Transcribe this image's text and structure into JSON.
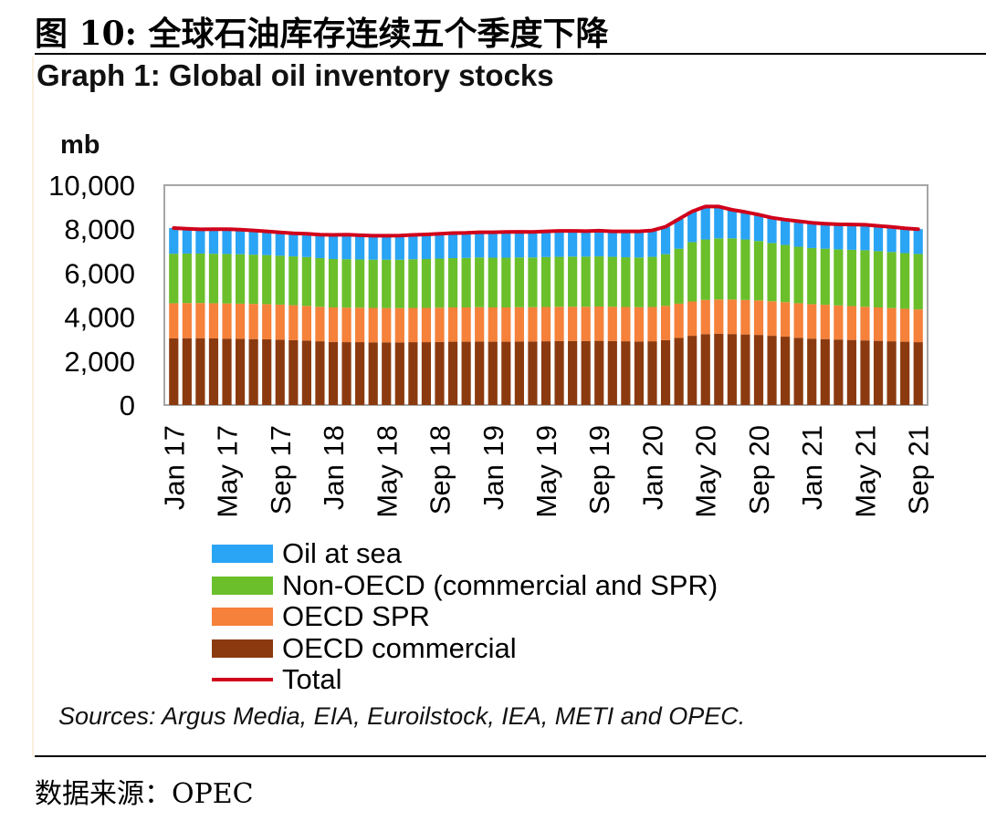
{
  "figure_caption": "图 10: 全球石油库存连续五个季度下降",
  "footer_source": "数据来源：OPEC",
  "chart_data": {
    "type": "bar",
    "title": "Graph 1: Global oil inventory stocks",
    "ylabel": "mb",
    "xlabel": "",
    "ylim": [
      0,
      10000
    ],
    "y_ticks": [
      "0",
      "2,000",
      "4,000",
      "6,000",
      "8,000",
      "10,000"
    ],
    "stacked": true,
    "legend_position": "bottom",
    "grid": false,
    "tick_labels": [
      "Jan 17",
      "May 17",
      "Sep 17",
      "Jan 18",
      "May 18",
      "Sep 18",
      "Jan 19",
      "May 19",
      "Sep 19",
      "Jan 20",
      "May 20",
      "Sep 20",
      "Jan 21",
      "May 21",
      "Sep 21"
    ],
    "categories": [
      "Jan 17",
      "Feb 17",
      "Mar 17",
      "Apr 17",
      "May 17",
      "Jun 17",
      "Jul 17",
      "Aug 17",
      "Sep 17",
      "Oct 17",
      "Nov 17",
      "Dec 17",
      "Jan 18",
      "Feb 18",
      "Mar 18",
      "Apr 18",
      "May 18",
      "Jun 18",
      "Jul 18",
      "Aug 18",
      "Sep 18",
      "Oct 18",
      "Nov 18",
      "Dec 18",
      "Jan 19",
      "Feb 19",
      "Mar 19",
      "Apr 19",
      "May 19",
      "Jun 19",
      "Jul 19",
      "Aug 19",
      "Sep 19",
      "Oct 19",
      "Nov 19",
      "Dec 19",
      "Jan 20",
      "Feb 20",
      "Mar 20",
      "Apr 20",
      "May 20",
      "Jun 20",
      "Jul 20",
      "Aug 20",
      "Sep 20",
      "Oct 20",
      "Nov 20",
      "Dec 20",
      "Jan 21",
      "Feb 21",
      "Mar 21",
      "Apr 21",
      "May 21",
      "Jun 21",
      "Jul 21",
      "Aug 21",
      "Sep 21"
    ],
    "series": [
      {
        "name": "OECD commercial",
        "color": "#8b3a0f",
        "values": [
          3030,
          3040,
          3040,
          3030,
          3020,
          3010,
          3000,
          2990,
          2970,
          2950,
          2930,
          2900,
          2870,
          2860,
          2860,
          2850,
          2850,
          2850,
          2860,
          2860,
          2870,
          2880,
          2880,
          2890,
          2880,
          2880,
          2890,
          2890,
          2900,
          2910,
          2910,
          2910,
          2920,
          2910,
          2900,
          2890,
          2900,
          2950,
          3050,
          3150,
          3220,
          3240,
          3230,
          3210,
          3190,
          3150,
          3110,
          3060,
          3020,
          3000,
          2980,
          2960,
          2940,
          2920,
          2900,
          2880,
          2860
        ]
      },
      {
        "name": "OECD SPR",
        "color": "#f5813a",
        "values": [
          1600,
          1600,
          1600,
          1600,
          1600,
          1600,
          1600,
          1600,
          1600,
          1590,
          1580,
          1570,
          1570,
          1570,
          1570,
          1570,
          1560,
          1560,
          1560,
          1560,
          1560,
          1560,
          1560,
          1560,
          1560,
          1560,
          1560,
          1560,
          1560,
          1560,
          1560,
          1560,
          1560,
          1560,
          1560,
          1560,
          1560,
          1560,
          1560,
          1560,
          1560,
          1560,
          1570,
          1570,
          1570,
          1570,
          1570,
          1570,
          1570,
          1560,
          1550,
          1540,
          1530,
          1520,
          1510,
          1500,
          1490
        ]
      },
      {
        "name": "Non-OECD (commercial and SPR)",
        "color": "#6abf2a",
        "values": [
          2250,
          2250,
          2250,
          2250,
          2250,
          2250,
          2240,
          2230,
          2220,
          2220,
          2220,
          2210,
          2200,
          2200,
          2190,
          2190,
          2200,
          2200,
          2210,
          2220,
          2230,
          2240,
          2250,
          2260,
          2260,
          2260,
          2260,
          2260,
          2270,
          2270,
          2280,
          2280,
          2280,
          2270,
          2260,
          2260,
          2280,
          2350,
          2500,
          2700,
          2750,
          2780,
          2780,
          2750,
          2700,
          2650,
          2600,
          2570,
          2550,
          2550,
          2550,
          2560,
          2570,
          2560,
          2550,
          2530,
          2520
        ]
      },
      {
        "name": "Oil at sea",
        "color": "#2aa4f4",
        "values": [
          1170,
          1130,
          1100,
          1120,
          1130,
          1120,
          1100,
          1080,
          1060,
          1050,
          1060,
          1070,
          1100,
          1120,
          1100,
          1090,
          1090,
          1100,
          1110,
          1120,
          1130,
          1140,
          1140,
          1150,
          1160,
          1170,
          1170,
          1160,
          1170,
          1180,
          1170,
          1160,
          1170,
          1160,
          1180,
          1190,
          1200,
          1250,
          1350,
          1400,
          1500,
          1450,
          1300,
          1250,
          1200,
          1150,
          1150,
          1160,
          1150,
          1140,
          1140,
          1150,
          1160,
          1150,
          1140,
          1130,
          1130
        ]
      }
    ],
    "line_series": {
      "name": "Total",
      "color": "#d0021b",
      "values": [
        8050,
        8020,
        7990,
        8000,
        8000,
        7980,
        7940,
        7900,
        7850,
        7810,
        7790,
        7750,
        7740,
        7750,
        7720,
        7700,
        7700,
        7710,
        7740,
        7760,
        7790,
        7820,
        7830,
        7860,
        7860,
        7870,
        7880,
        7870,
        7900,
        7920,
        7920,
        7910,
        7930,
        7900,
        7900,
        7900,
        7940,
        8110,
        8460,
        8810,
        9030,
        9030,
        8880,
        8780,
        8660,
        8520,
        8430,
        8360,
        8290,
        8250,
        8220,
        8210,
        8200,
        8150,
        8100,
        8040,
        8000
      ]
    }
  },
  "legend": [
    {
      "label": "Oil at sea",
      "color": "#2aa4f4",
      "kind": "box"
    },
    {
      "label": "Non-OECD (commercial and SPR)",
      "color": "#6abf2a",
      "kind": "box"
    },
    {
      "label": "OECD SPR",
      "color": "#f5813a",
      "kind": "box"
    },
    {
      "label": "OECD commercial",
      "color": "#8b3a0f",
      "kind": "box"
    },
    {
      "label": "Total",
      "color": "#d0021b",
      "kind": "line"
    }
  ],
  "sources_note": "Sources: Argus Media, EIA, Euroilstock, IEA, METI and OPEC."
}
